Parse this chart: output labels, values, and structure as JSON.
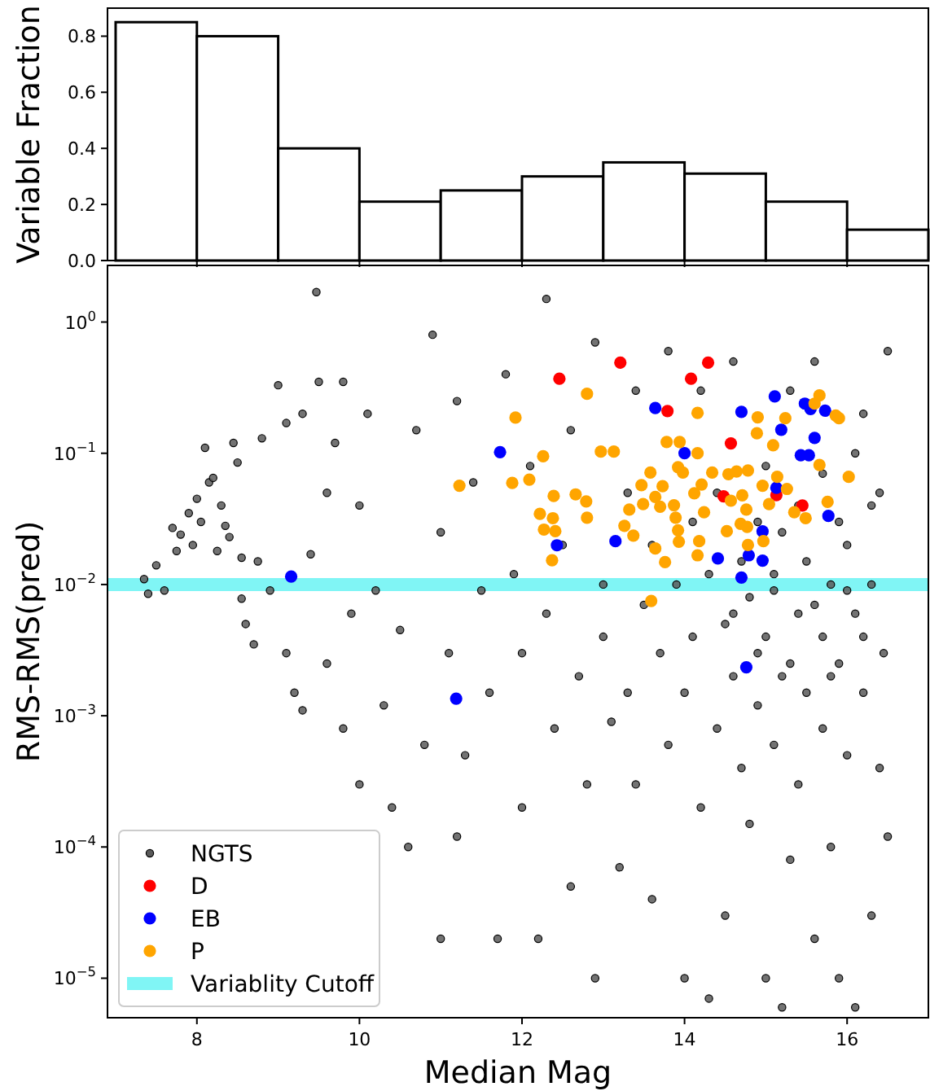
{
  "chart_data": [
    {
      "type": "histogram",
      "ylabel": "Variable Fraction",
      "bins": [
        7,
        8,
        9,
        10,
        11,
        12,
        13,
        14,
        15,
        16,
        17
      ],
      "values": [
        0.85,
        0.8,
        0.4,
        0.21,
        0.25,
        0.3,
        0.35,
        0.31,
        0.21,
        0.11
      ],
      "color": "#ffffff",
      "xlim": [
        6.9,
        17
      ],
      "xticks": [
        8,
        10,
        12,
        14,
        16
      ],
      "ylim": [
        0,
        0.9
      ],
      "yticks": [
        {
          "value": 0,
          "label": "0.0"
        },
        {
          "value": 0.2,
          "label": "0.2"
        },
        {
          "value": 0.4,
          "label": "0.4"
        },
        {
          "value": 0.6,
          "label": "0.6"
        },
        {
          "value": 0.8,
          "label": "0.8"
        }
      ],
      "tick_labels": "y"
    },
    {
      "type": "scatter",
      "xlabel": "Median Mag",
      "ylabel": "RMS-RMS(pred)",
      "log": "y",
      "xlim": [
        6.9,
        17
      ],
      "xticks": [
        8,
        10,
        12,
        14,
        16
      ],
      "ylim": [
        5e-06,
        2.7
      ],
      "yticks": [
        {
          "value": 1,
          "label": "10$^{0}$"
        },
        {
          "value": 0.1,
          "label": "10$^{−1}$"
        },
        {
          "value": 0.01,
          "label": "10$^{−2}$"
        },
        {
          "value": 0.001,
          "label": "10$^{−3}$"
        },
        {
          "value": 0.0001,
          "label": "10$^{−4}$"
        },
        {
          "value": 1e-05,
          "label": "10$^{−5}$"
        }
      ],
      "legend": "bottom left",
      "marker": "circle",
      "ref_lines": [
        {
          "axis": "y",
          "value": 0.01,
          "label": "Variablity Cutoff",
          "color": "#80f5f5"
        }
      ],
      "series": [
        {
          "name": "NGTS",
          "color": "#5a5a5a",
          "x": [
            7.35,
            7.4,
            7.5,
            7.6,
            7.7,
            7.75,
            7.8,
            7.9,
            7.95,
            8.0,
            8.05,
            8.1,
            8.15,
            8.2,
            8.25,
            8.3,
            8.35,
            8.4,
            8.45,
            8.5,
            8.55,
            8.55,
            8.6,
            8.7,
            8.75,
            8.8,
            8.9,
            9.0,
            9.1,
            9.1,
            9.2,
            9.3,
            9.3,
            9.4,
            9.47,
            9.5,
            9.6,
            9.6,
            9.7,
            9.8,
            9.8,
            9.9,
            10.0,
            10.0,
            10.1,
            10.2,
            10.3,
            10.4,
            10.5,
            10.6,
            10.7,
            10.8,
            10.9,
            11.0,
            11.0,
            11.1,
            11.2,
            11.2,
            11.3,
            11.4,
            11.5,
            11.6,
            11.7,
            11.8,
            11.9,
            12.0,
            12.0,
            12.1,
            12.2,
            12.3,
            12.3,
            12.4,
            12.5,
            12.6,
            12.6,
            12.7,
            12.8,
            12.9,
            12.9,
            13.0,
            13.0,
            13.1,
            13.2,
            13.3,
            13.3,
            13.4,
            13.4,
            13.5,
            13.6,
            13.6,
            13.7,
            13.8,
            13.8,
            13.9,
            14.0,
            14.0,
            14.1,
            14.2,
            14.2,
            14.3,
            14.3,
            14.4,
            14.5,
            14.5,
            14.6,
            14.6,
            14.7,
            14.8,
            14.8,
            14.9,
            14.9,
            15.0,
            15.0,
            15.1,
            15.1,
            15.2,
            15.2,
            15.3,
            15.3,
            15.4,
            15.4,
            15.5,
            15.5,
            15.6,
            15.6,
            15.7,
            15.7,
            15.8,
            15.8,
            15.9,
            15.9,
            16.0,
            16.0,
            16.1,
            16.1,
            16.2,
            16.2,
            16.3,
            16.3,
            16.4,
            16.4,
            16.45,
            16.5,
            16.5,
            14.1,
            14.4,
            14.7,
            15.0,
            15.2,
            15.4,
            15.7,
            15.9,
            16.1,
            16.3,
            14.6,
            15.1,
            15.6,
            16.0,
            14.9,
            15.3,
            15.8,
            16.2
          ],
          "values": [
            0.011,
            0.0085,
            0.014,
            0.009,
            0.027,
            0.018,
            0.024,
            0.035,
            0.02,
            0.045,
            0.03,
            0.11,
            0.06,
            0.065,
            0.018,
            0.04,
            0.028,
            0.023,
            0.12,
            0.085,
            0.016,
            0.0078,
            0.005,
            0.0035,
            0.015,
            0.13,
            0.009,
            0.33,
            0.17,
            0.003,
            0.0015,
            0.2,
            0.0011,
            0.017,
            1.69,
            0.35,
            0.05,
            0.0025,
            0.12,
            0.35,
            0.0008,
            0.006,
            0.04,
            0.0003,
            0.2,
            0.009,
            0.0012,
            0.0002,
            0.0045,
            0.0001,
            0.15,
            0.0006,
            0.8,
            0.025,
            2e-05,
            0.003,
            0.25,
            0.00012,
            0.0005,
            0.06,
            0.009,
            0.0015,
            2e-05,
            0.4,
            0.012,
            0.003,
            0.0002,
            0.08,
            2e-05,
            1.5,
            0.006,
            0.0008,
            0.02,
            5e-05,
            0.15,
            0.002,
            0.0003,
            1e-05,
            0.7,
            0.01,
            0.004,
            0.0009,
            7e-05,
            0.05,
            0.0015,
            0.3,
            0.0003,
            0.007,
            4e-05,
            0.02,
            0.003,
            0.0006,
            0.6,
            0.01,
            1e-05,
            0.0015,
            0.004,
            0.0002,
            0.3,
            0.012,
            7e-06,
            0.0008,
            0.005,
            3e-05,
            0.5,
            0.002,
            0.0004,
            0.008,
            0.00015,
            0.03,
            0.0012,
            1e-05,
            0.004,
            0.0006,
            0.012,
            6e-06,
            0.002,
            0.3,
            8e-05,
            0.006,
            0.0003,
            0.015,
            0.0015,
            2e-05,
            0.5,
            0.004,
            0.0008,
            0.01,
            0.0001,
            0.0025,
            1e-05,
            0.02,
            0.0005,
            0.006,
            6e-06,
            0.2,
            0.0015,
            3e-05,
            0.01,
            0.0004,
            0.05,
            0.003,
            0.00012,
            0.6,
            0.03,
            0.05,
            0.015,
            0.08,
            0.025,
            0.04,
            0.07,
            0.03,
            0.1,
            0.04,
            0.006,
            0.009,
            0.007,
            0.009,
            0.003,
            0.0025,
            0.002,
            0.004
          ]
        },
        {
          "name": "D",
          "color": "#ff0000",
          "x": [
            12.46,
            13.21,
            14.08,
            14.29,
            13.79,
            14.57,
            14.48,
            15.13,
            15.45
          ],
          "values": [
            0.37,
            0.49,
            0.37,
            0.49,
            0.21,
            0.119,
            0.047,
            0.048,
            0.04
          ]
        },
        {
          "name": "EB",
          "color": "#0000ff",
          "x": [
            9.16,
            11.19,
            11.73,
            12.43,
            13.15,
            13.64,
            14.0,
            14.41,
            14.7,
            14.7,
            14.76,
            14.79,
            14.96,
            14.96,
            15.11,
            15.13,
            15.19,
            15.48,
            15.55,
            15.6,
            15.43,
            15.53,
            15.73,
            15.77
          ],
          "values": [
            0.0115,
            0.00135,
            0.102,
            0.0199,
            0.0214,
            0.221,
            0.1,
            0.0158,
            0.207,
            0.0113,
            0.00234,
            0.0167,
            0.0254,
            0.0152,
            0.271,
            0.0545,
            0.151,
            0.239,
            0.217,
            0.131,
            0.0966,
            0.0966,
            0.211,
            0.0333
          ]
        },
        {
          "name": "P",
          "color": "#ffa500",
          "x": [
            11.92,
            12.8,
            11.23,
            11.88,
            12.09,
            12.26,
            12.97,
            13.13,
            12.39,
            12.66,
            12.79,
            12.8,
            12.22,
            12.38,
            12.27,
            12.41,
            12.37,
            13.59,
            13.26,
            13.37,
            13.32,
            13.47,
            13.58,
            13.49,
            13.64,
            13.73,
            13.7,
            13.87,
            13.89,
            13.92,
            13.93,
            13.64,
            13.76,
            13.78,
            13.94,
            14.16,
            14.16,
            13.92,
            13.98,
            14.12,
            14.21,
            14.34,
            14.24,
            14.18,
            14.16,
            14.52,
            14.54,
            14.57,
            14.71,
            14.76,
            14.69,
            14.78,
            14.77,
            14.97,
            14.9,
            14.89,
            15.09,
            15.24,
            15.14,
            14.96,
            15.04,
            15.26,
            15.35,
            15.49,
            15.66,
            15.76,
            16.02,
            15.66,
            15.6,
            15.86,
            15.9,
            14.64,
            14.78
          ],
          "values": [
            0.187,
            0.284,
            0.0566,
            0.0594,
            0.063,
            0.0948,
            0.103,
            0.103,
            0.0473,
            0.0486,
            0.043,
            0.0323,
            0.0345,
            0.032,
            0.0262,
            0.0255,
            0.0153,
            0.0075,
            0.028,
            0.0236,
            0.0372,
            0.0571,
            0.0713,
            0.041,
            0.0464,
            0.0561,
            0.0391,
            0.0402,
            0.0323,
            0.0259,
            0.0212,
            0.0188,
            0.0148,
            0.122,
            0.122,
            0.1,
            0.203,
            0.0784,
            0.0713,
            0.0495,
            0.0578,
            0.0713,
            0.0355,
            0.0214,
            0.0167,
            0.0255,
            0.0692,
            0.0435,
            0.0478,
            0.0372,
            0.029,
            0.02,
            0.0275,
            0.0214,
            0.188,
            0.142,
            0.115,
            0.185,
            0.0661,
            0.0566,
            0.041,
            0.0535,
            0.0355,
            0.032,
            0.0815,
            0.0426,
            0.0661,
            0.276,
            0.239,
            0.194,
            0.185,
            0.0726,
            0.074
          ]
        }
      ]
    }
  ]
}
